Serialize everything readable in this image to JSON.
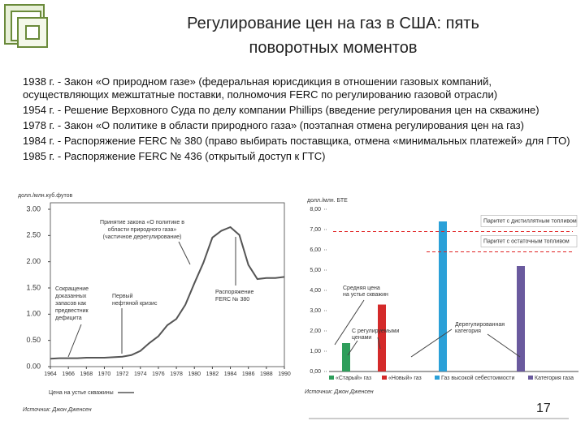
{
  "title": "Регулирование цен на газ в США: пять поворотных моментов",
  "items": [
    "1938 г. - Закон «О природном газе» (федеральная юрисдикция в отношении газовых компаний, осуществляющих межштатные поставки, полномочия FERC по регулированию газовой отрасли)",
    "1954 г. - Решение Верховного Суда по делу компании Phillips (введение регулирования цен на скважине)",
    "1978 г. - Закон «О политике в области природного газа» (поэтапная отмена регулирования цен на газ)",
    "1984 г. - Распоряжение FERC № 380 (право выбирать поставщика, отмена «минимальных платежей» для ГТО)",
    "1985 г. - Распоряжение FERC № 436 (открытый доступ к ГТС)"
  ],
  "left_chart": {
    "type": "line",
    "y_label": "долл./млн.куб.футов",
    "x": [
      1964,
      1965,
      1966,
      1967,
      1968,
      1969,
      1970,
      1971,
      1972,
      1973,
      1974,
      1975,
      1976,
      1977,
      1978,
      1979,
      1980,
      1981,
      1982,
      1983,
      1984,
      1985,
      1986,
      1987,
      1988,
      1989,
      1990
    ],
    "values": [
      0.15,
      0.16,
      0.16,
      0.16,
      0.17,
      0.17,
      0.17,
      0.18,
      0.19,
      0.22,
      0.3,
      0.45,
      0.58,
      0.79,
      0.91,
      1.18,
      1.59,
      1.98,
      2.46,
      2.59,
      2.66,
      2.51,
      1.94,
      1.67,
      1.69,
      1.69,
      1.71
    ],
    "color": "#555555",
    "xlim": [
      1964,
      1990
    ],
    "xticks": [
      1964,
      1966,
      1968,
      1970,
      1972,
      1974,
      1976,
      1978,
      1980,
      1982,
      1984,
      1986,
      1988,
      1990
    ],
    "ylim": [
      0,
      3
    ],
    "yticks": [
      {
        "value": 0,
        "label": "0.00"
      },
      {
        "value": 0.5,
        "label": "0.50"
      },
      {
        "value": 1,
        "label": "1.00"
      },
      {
        "value": 1.5,
        "label": "1.50"
      },
      {
        "value": 2,
        "label": "2.00"
      },
      {
        "value": 2.5,
        "label": "2.50"
      },
      {
        "value": 3,
        "label": "3.00"
      }
    ],
    "annotations": [
      [
        "Принятие закона «О политике в",
        "области природного газа»",
        "(частичное дерегулирование)"
      ],
      [
        "Сокращение",
        "доказанных",
        "запасов как",
        "предвестник",
        "дефицита"
      ],
      [
        "Первый",
        "нефтяной кризис"
      ],
      [
        "Распоряжение",
        "FERC № 380"
      ]
    ],
    "legend": "Цена на устье скважины",
    "source": "Источник: Джон Дженсен"
  },
  "right_chart": {
    "type": "bar",
    "y_label": "долл./млн. БТЕ",
    "ylim": [
      0,
      8
    ],
    "yticks": [
      {
        "value": 0,
        "label": "0,00"
      },
      {
        "value": 1,
        "label": "1,00"
      },
      {
        "value": 2,
        "label": "2,00"
      },
      {
        "value": 3,
        "label": "3,00"
      },
      {
        "value": 4,
        "label": "4,00"
      },
      {
        "value": 5,
        "label": "5,00"
      },
      {
        "value": 6,
        "label": "6,00"
      },
      {
        "value": 7,
        "label": "7,00"
      },
      {
        "value": 8,
        "label": "8,00"
      }
    ],
    "series": [
      {
        "name": "«Старый» газ",
        "color": "#2e9e5b",
        "values": [
          1.4
        ]
      },
      {
        "name": "«Новый» газ",
        "color": "#d42a2a",
        "values": [
          3.3
        ]
      },
      {
        "name": "Газ высокой себестоимости",
        "color": "#2aa0d8",
        "values": [
          7.4
        ]
      },
      {
        "name": "Категория газа",
        "color": "#6a5a9e",
        "values": [
          5.2
        ]
      }
    ],
    "reference_lines": [
      {
        "label": "Паритет с дистиллятным топливом",
        "value": 6.9,
        "color": "#e02020"
      },
      {
        "label": "Паритет с остаточным топливом",
        "value": 5.9,
        "color": "#e02020"
      }
    ],
    "annotations": [
      [
        "Средняя цена",
        "на устье скважин"
      ],
      [
        "С регулируемыми",
        "ценами"
      ],
      [
        "Дерегулированная",
        "категория"
      ]
    ],
    "source": "Источник: Джон Дженсен"
  },
  "page_number": "17"
}
